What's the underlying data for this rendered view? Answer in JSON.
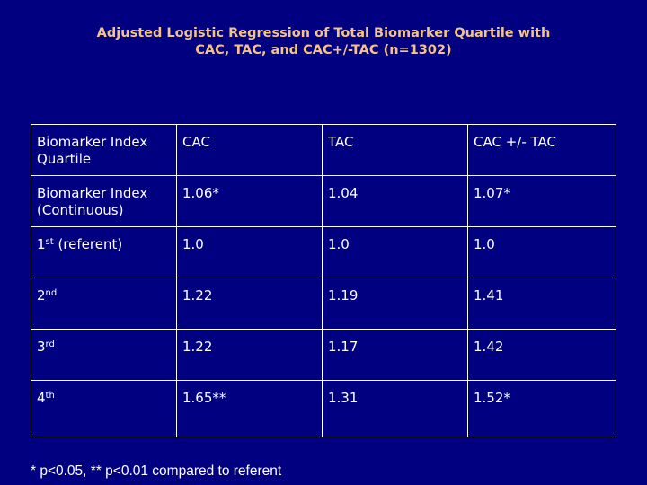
{
  "title": {
    "line1": "Adjusted Logistic Regression of Total Biomarker Quartile with",
    "line2": "CAC, TAC, and CAC+/-TAC (n=1302)"
  },
  "table": {
    "header": [
      "Biomarker Index Quartile",
      "CAC",
      "TAC",
      "CAC +/- TAC"
    ],
    "rows": [
      {
        "label": "Biomarker Index (Continuous)",
        "cac": "1.06*",
        "tac": "1.04",
        "cac_tac": "1.07*"
      },
      {
        "label_num": "1",
        "label_suffix": "st",
        "label_rest": " (referent)",
        "cac": "1.0",
        "tac": "1.0",
        "cac_tac": "1.0"
      },
      {
        "label_num": "2",
        "label_suffix": "nd",
        "label_rest": "",
        "cac": "1.22",
        "tac": "1.19",
        "cac_tac": "1.41"
      },
      {
        "label_num": "3",
        "label_suffix": "rd",
        "label_rest": "",
        "cac": "1.22",
        "tac": "1.17",
        "cac_tac": "1.42"
      },
      {
        "label_num": "4",
        "label_suffix": "th",
        "label_rest": "",
        "cac": "1.65**",
        "tac": "1.31",
        "cac_tac": "1.52*"
      }
    ]
  },
  "footnote": "* p<0.05, ** p<0.01 compared to referent"
}
